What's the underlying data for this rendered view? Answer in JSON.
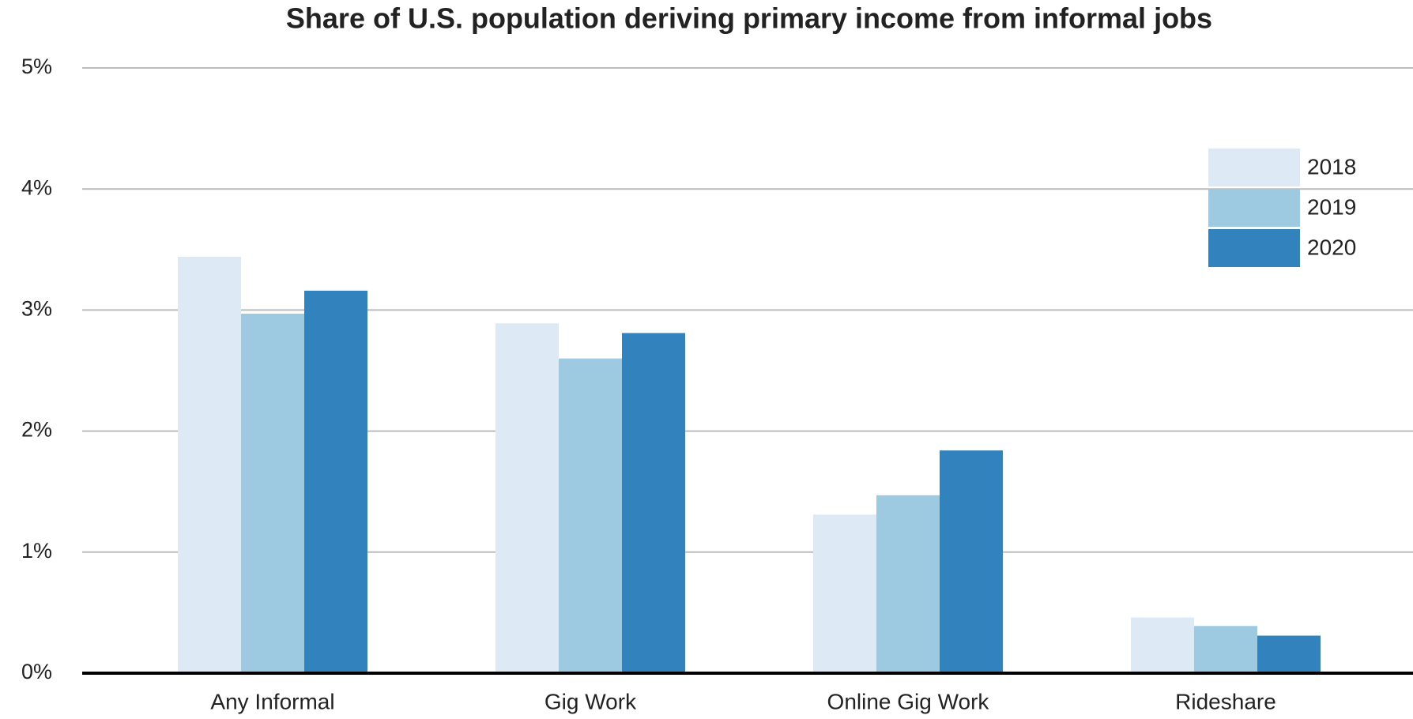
{
  "chart_data": {
    "type": "bar",
    "title": "Share of U.S. population deriving primary income from informal jobs",
    "categories": [
      "Any Informal",
      "Gig Work",
      "Online Gig Work",
      "Rideshare"
    ],
    "series": [
      {
        "name": "2018",
        "color": "#dde9f5",
        "values": [
          3.44,
          2.89,
          1.31,
          0.46
        ]
      },
      {
        "name": "2019",
        "color": "#9ecae1",
        "values": [
          2.97,
          2.6,
          1.47,
          0.39
        ]
      },
      {
        "name": "2020",
        "color": "#3182bd",
        "values": [
          3.16,
          2.81,
          1.84,
          0.31
        ]
      }
    ],
    "ylim": [
      0,
      5
    ],
    "yticks": [
      {
        "value": 0,
        "label": "0%"
      },
      {
        "value": 1,
        "label": "1%"
      },
      {
        "value": 2,
        "label": "2%"
      },
      {
        "value": 3,
        "label": "3%"
      },
      {
        "value": 4,
        "label": "4%"
      },
      {
        "value": 5,
        "label": "5%"
      }
    ],
    "grid": true,
    "legend": "upper right"
  }
}
